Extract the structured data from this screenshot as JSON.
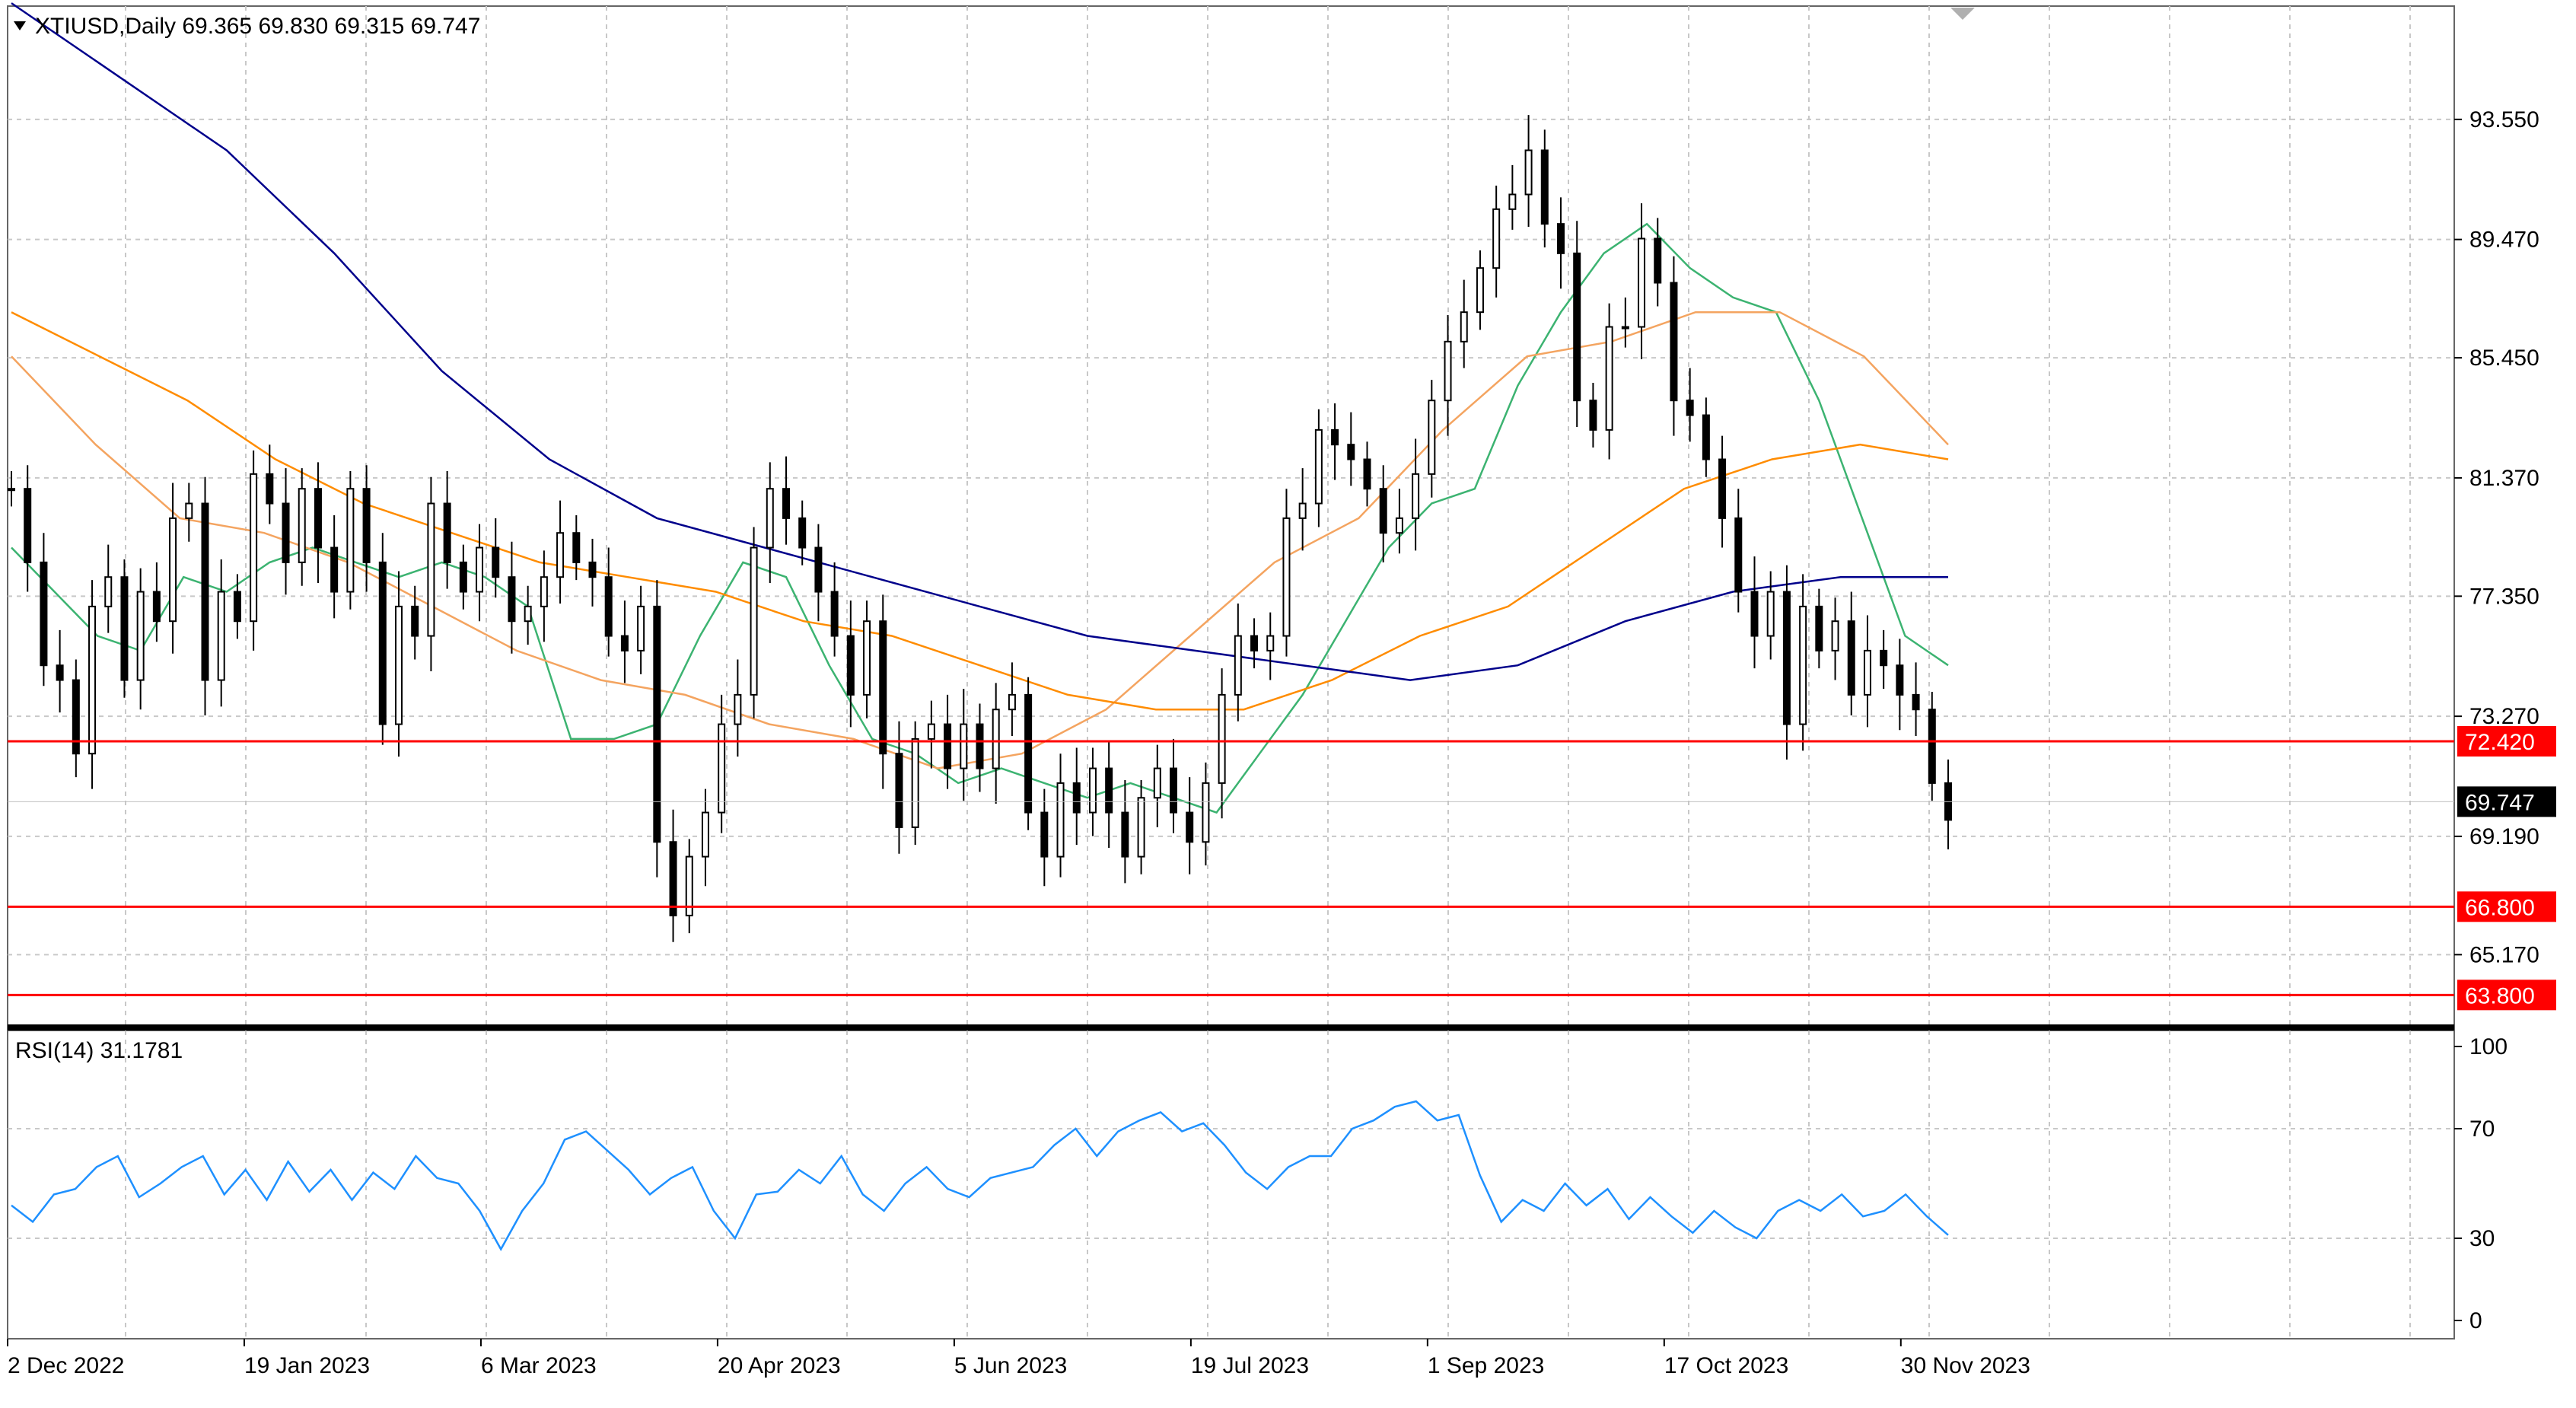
{
  "header": {
    "symbol_line": "XTIUSD,Daily  69.365 69.830 69.315 69.747"
  },
  "rsi_panel": {
    "label": "RSI(14) 31.1781"
  },
  "colors": {
    "background": "#ffffff",
    "grid": "#c8c8c8",
    "candle": "#000000",
    "ma_fast": "#3cb371",
    "ma_mid": "#f4a460",
    "ma_slow": "#ff8c00",
    "ma_long": "#00008b",
    "rsi_line": "#1e90ff",
    "level_line": "#ff0000",
    "price_tag_current": "#000000"
  },
  "chart_data": [
    {
      "type": "candlestick",
      "title": "XTIUSD,Daily",
      "ohlc_last": {
        "open": 69.365,
        "high": 69.83,
        "low": 69.315,
        "close": 69.747
      },
      "x_ticks": [
        "2 Dec 2022",
        "19 Jan 2023",
        "6 Mar 2023",
        "20 Apr 2023",
        "5 Jun 2023",
        "19 Jul 2023",
        "1 Sep 2023",
        "17 Oct 2023",
        "30 Nov 2023"
      ],
      "y_ticks": [
        "93.550",
        "89.470",
        "85.450",
        "81.370",
        "77.350",
        "73.270",
        "69.190",
        "65.170"
      ],
      "ylim": [
        62.8,
        97.4
      ],
      "grid": true,
      "price_levels": [
        {
          "label": "72.420",
          "value": 72.42
        },
        {
          "label": "66.800",
          "value": 66.8
        },
        {
          "label": "63.800",
          "value": 63.8
        }
      ],
      "current_price": {
        "label": "69.747",
        "value": 69.747
      },
      "series": [
        {
          "kind": "close",
          "values": [
            81.0,
            78.5,
            75.0,
            74.5,
            72.0,
            77.0,
            78.0,
            74.5,
            77.5,
            76.5,
            80.0,
            80.5,
            74.5,
            77.5,
            76.5,
            81.5,
            80.5,
            78.5,
            81.0,
            79.0,
            77.5,
            81.0,
            78.5,
            73.0,
            77.0,
            76.0,
            80.5,
            78.5,
            77.5,
            79.0,
            78.0,
            76.5,
            77.0,
            78.0,
            79.5,
            78.5,
            78.0,
            76.0,
            75.5,
            77.0,
            69.0,
            66.5,
            68.5,
            70.0,
            73.0,
            74.0,
            79.0,
            81.0,
            80.0,
            79.0,
            77.5,
            76.0,
            74.0,
            76.5,
            72.0,
            69.5,
            72.5,
            73.0,
            71.5,
            73.0,
            71.5,
            73.5,
            74.0,
            70.0,
            68.5,
            71.0,
            70.0,
            71.5,
            70.0,
            68.5,
            70.5,
            71.5,
            70.0,
            69.0,
            71.0,
            74.0,
            76.0,
            75.5,
            76.0,
            80.0,
            80.5,
            83.0,
            82.5,
            82.0,
            81.0,
            79.5,
            80.0,
            81.5,
            84.0,
            86.0,
            87.0,
            88.5,
            90.5,
            91.0,
            92.5,
            90.0,
            89.0,
            84.0,
            83.0,
            86.5,
            86.5,
            89.5,
            88.0,
            84.0,
            83.5,
            82.0,
            80.0,
            77.5,
            76.0,
            77.5,
            73.0,
            77.0,
            75.5,
            76.5,
            74.0,
            75.5,
            75.0,
            74.0,
            73.5,
            71.0,
            69.747
          ]
        },
        {
          "kind": "ma_fast",
          "values": [
            79.0,
            77.5,
            76.0,
            75.5,
            78.0,
            77.5,
            78.5,
            79.0,
            78.5,
            78.0,
            78.5,
            78.0,
            77.0,
            72.5,
            72.5,
            73.0,
            76.0,
            78.5,
            78.0,
            75.0,
            72.5,
            72.0,
            71.0,
            71.5,
            71.0,
            70.5,
            71.0,
            70.5,
            70.0,
            72.0,
            74.0,
            76.5,
            79.0,
            80.5,
            81.0,
            84.5,
            87.0,
            89.0,
            90.0,
            88.5,
            87.5,
            87.0,
            84.0,
            80.0,
            76.0,
            75.0
          ]
        },
        {
          "kind": "ma_mid",
          "values": [
            85.5,
            82.5,
            80.0,
            79.5,
            78.5,
            77.0,
            75.5,
            74.5,
            74.0,
            73.0,
            72.5,
            71.5,
            72.0,
            73.5,
            76.0,
            78.5,
            80.0,
            83.0,
            85.5,
            86.0,
            87.0,
            87.0,
            85.5,
            82.5
          ]
        },
        {
          "kind": "ma_slow",
          "values": [
            87.0,
            85.5,
            84.0,
            82.0,
            80.5,
            79.5,
            78.5,
            78.0,
            77.5,
            76.5,
            76.0,
            75.0,
            74.0,
            73.5,
            73.5,
            74.5,
            76.0,
            77.0,
            79.0,
            81.0,
            82.0,
            82.5,
            82.0
          ]
        },
        {
          "kind": "ma_long",
          "values": [
            97.5,
            95.0,
            92.5,
            89.0,
            85.0,
            82.0,
            80.0,
            79.0,
            78.0,
            77.0,
            76.0,
            75.5,
            75.0,
            74.5,
            75.0,
            76.5,
            77.5,
            78.0,
            78.0
          ]
        }
      ]
    },
    {
      "type": "line",
      "title": "RSI(14) 31.1781",
      "y_ticks": [
        "100",
        "70",
        "30",
        "0"
      ],
      "ylim": [
        0,
        100
      ],
      "series": [
        {
          "kind": "rsi",
          "values": [
            42,
            36,
            46,
            48,
            56,
            60,
            45,
            50,
            56,
            60,
            46,
            55,
            44,
            58,
            47,
            55,
            44,
            54,
            48,
            60,
            52,
            50,
            40,
            26,
            40,
            50,
            66,
            69,
            62,
            55,
            46,
            52,
            56,
            40,
            30,
            46,
            47,
            55,
            50,
            60,
            46,
            40,
            50,
            56,
            48,
            45,
            52,
            54,
            56,
            64,
            70,
            60,
            69,
            73,
            76,
            69,
            72,
            64,
            54,
            48,
            56,
            60,
            60,
            70,
            73,
            78,
            80,
            73,
            75,
            53,
            36,
            44,
            40,
            50,
            42,
            48,
            37,
            45,
            38,
            32,
            40,
            34,
            30,
            40,
            44,
            40,
            46,
            38,
            40,
            46,
            38,
            31.1781
          ]
        }
      ]
    }
  ]
}
